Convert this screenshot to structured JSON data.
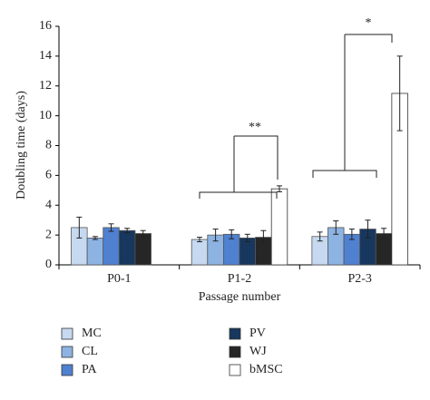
{
  "chart_data": {
    "type": "bar",
    "y_label": "Doubling time (days)",
    "x_label": "Passage number",
    "categories": [
      "P0-1",
      "P1-2",
      "P2-3"
    ],
    "series": [
      {
        "name": "MC",
        "color": "#c6d9f1",
        "values": [
          2.5,
          1.7,
          1.9
        ],
        "errors": [
          0.7,
          0.15,
          0.3
        ]
      },
      {
        "name": "CL",
        "color": "#8db3e2",
        "values": [
          1.8,
          2.0,
          2.5
        ],
        "errors": [
          0.1,
          0.4,
          0.45
        ]
      },
      {
        "name": "PA",
        "color": "#4f81d0",
        "values": [
          2.5,
          2.05,
          2.05
        ],
        "errors": [
          0.25,
          0.3,
          0.35
        ]
      },
      {
        "name": "PV",
        "color": "#17375e",
        "values": [
          2.3,
          1.8,
          2.4
        ],
        "errors": [
          0.15,
          0.25,
          0.6
        ]
      },
      {
        "name": "WJ",
        "color": "#262626",
        "values": [
          2.1,
          1.85,
          2.1
        ],
        "errors": [
          0.2,
          0.45,
          0.35
        ]
      },
      {
        "name": "bMSC",
        "color": "#ffffff",
        "values": [
          null,
          5.1,
          11.5
        ],
        "errors": [
          null,
          0.2,
          2.5
        ]
      }
    ],
    "annotations": [
      {
        "text": "**"
      },
      {
        "text": "*"
      }
    ],
    "ylim": [
      0,
      16
    ],
    "yticks": [
      0,
      2,
      4,
      6,
      8,
      10,
      12,
      14,
      16
    ],
    "grid": false
  }
}
